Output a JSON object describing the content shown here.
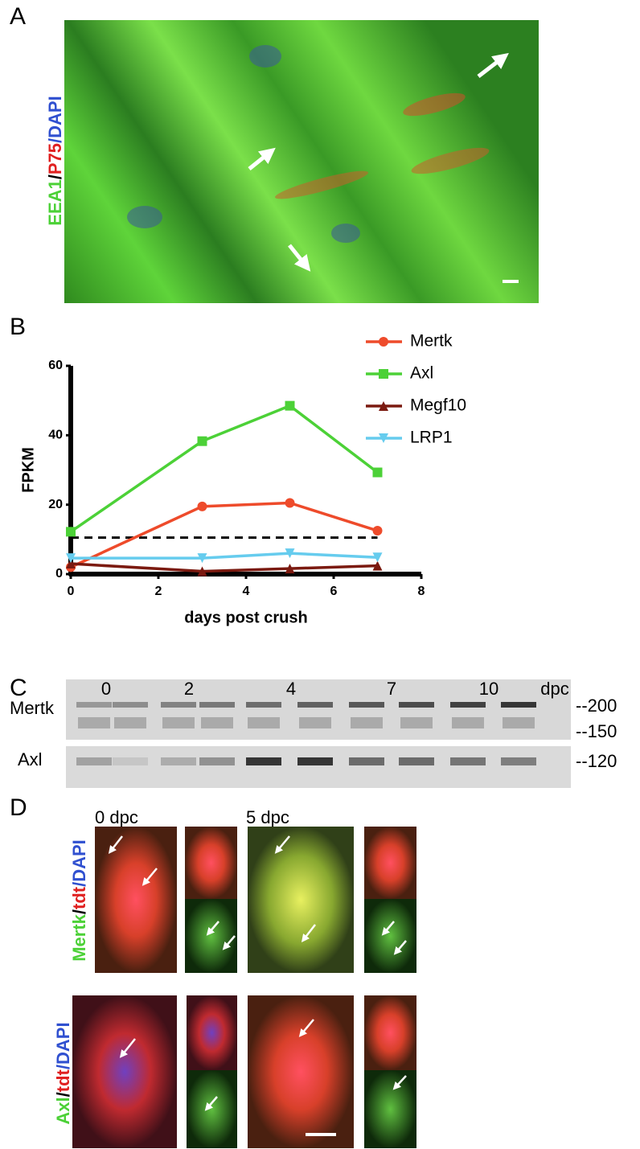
{
  "panel_a": {
    "label": "A",
    "stain": [
      "EEA1",
      "/",
      "P75",
      "/DAPI"
    ]
  },
  "panel_b": {
    "label": "B"
  },
  "chart_data": {
    "type": "line",
    "xlabel": "days post crush",
    "ylabel": "FPKM",
    "xlim": [
      0,
      8
    ],
    "xticks": [
      0,
      2,
      4,
      6,
      8
    ],
    "ylim": [
      0,
      60
    ],
    "yticks": [
      0,
      20,
      40,
      60
    ],
    "x": [
      0,
      3,
      5,
      7
    ],
    "reference_line": {
      "value": 10.5,
      "color": "#000000",
      "style": "dashed"
    },
    "series": [
      {
        "name": "Mertk",
        "color": "#ee4b2b",
        "marker": "circle",
        "values": [
          2,
          19.5,
          20.5,
          12.5
        ]
      },
      {
        "name": "Axl",
        "color": "#4cd137",
        "marker": "square",
        "values": [
          12.2,
          38.3,
          48.5,
          29.3
        ]
      },
      {
        "name": "Megf10",
        "color": "#7b1a10",
        "marker": "triangle-up",
        "values": [
          3,
          0.8,
          1.6,
          2.4
        ]
      },
      {
        "name": "LRP1",
        "color": "#66ccee",
        "marker": "triangle-down",
        "values": [
          4.6,
          4.6,
          6,
          4.8
        ]
      }
    ]
  },
  "panel_c": {
    "label": "C",
    "lanes": [
      "0",
      "2",
      "4",
      "7",
      "10",
      "dpc"
    ],
    "rows": [
      "Mertk",
      "Axl"
    ],
    "markers": [
      "--200",
      "--150",
      "--120"
    ]
  },
  "panel_d": {
    "label": "D",
    "times": [
      "0 dpc",
      "5 dpc"
    ],
    "rows": [
      [
        "Mertk",
        "/",
        "tdt",
        "/DAPI"
      ],
      [
        "Axl",
        "/",
        "tdt",
        "/DAPI"
      ]
    ]
  }
}
